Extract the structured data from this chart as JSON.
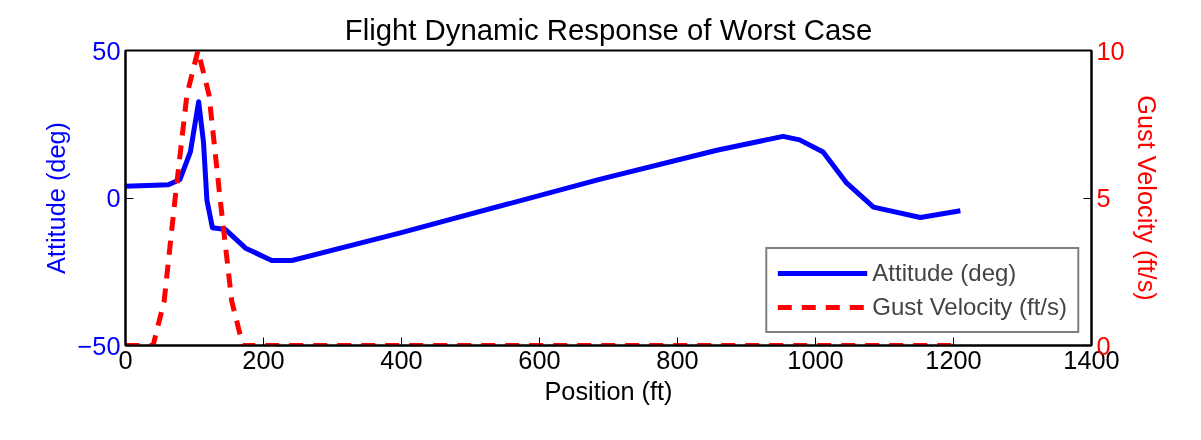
{
  "chart_data": {
    "type": "line",
    "title": "Flight Dynamic Response of Worst Case",
    "xlabel": "Position (ft)",
    "ylabel": "Attitude (deg)",
    "y2label": "Gust Velocity (ft/s)",
    "xlim": [
      0,
      1400
    ],
    "xticks": [
      0,
      200,
      400,
      600,
      800,
      1000,
      1200,
      1400
    ],
    "ylim": [
      -50,
      50
    ],
    "yticks": [
      -50,
      0,
      50
    ],
    "y2lim": [
      0,
      10
    ],
    "y2ticks": [
      0,
      5,
      10
    ],
    "grid": false,
    "legend": "bottom right",
    "series": [
      {
        "name": "Attitude (deg)",
        "color": "#0000ff",
        "line_style": "solid",
        "x": [
          0,
          62,
          79,
          94,
          106,
          113,
          118,
          126,
          145,
          174,
          212,
          241,
          397,
          687,
          857,
          953,
          977,
          1011,
          1045,
          1084,
          1152,
          1210
        ],
        "values": [
          4,
          4.5,
          6.3,
          15.6,
          32.6,
          19,
          -0.8,
          -10.1,
          -10.7,
          -17,
          -21.2,
          -21.2,
          -11.9,
          6.3,
          16.2,
          20.9,
          19.7,
          15.6,
          5.1,
          -3.1,
          -6.6,
          -4.3
        ]
      },
      {
        "name": "Gust Velocity (ft/s)",
        "color": "#ff0000",
        "line_style": "dashed",
        "axis": "y2",
        "x": [
          0,
          40,
          56,
          72,
          89,
          105,
          121,
          137,
          154,
          170,
          1210
        ],
        "values": [
          0,
          0,
          1.5,
          5,
          8.5,
          10,
          8.5,
          5,
          1.5,
          0,
          0
        ]
      }
    ]
  }
}
